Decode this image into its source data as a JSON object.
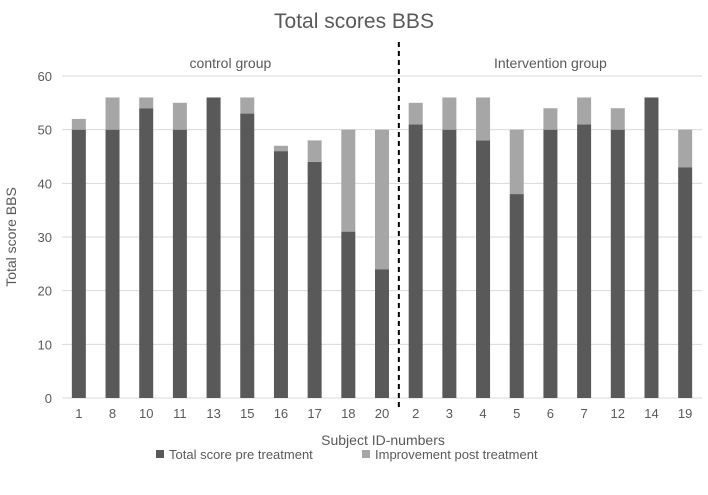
{
  "chart_data": {
    "type": "bar",
    "stacked": true,
    "title": "Total scores BBS",
    "xlabel": "Subject ID-numbers",
    "ylabel": "Total score BBS",
    "ylim": [
      0,
      60
    ],
    "yticks": [
      0,
      10,
      20,
      30,
      40,
      50,
      60
    ],
    "grid": true,
    "legend_position": "bottom",
    "groups": [
      {
        "label": "control group",
        "categories": [
          "1",
          "8",
          "10",
          "11",
          "13",
          "15",
          "16",
          "17",
          "18",
          "20"
        ]
      },
      {
        "label": "Intervention group",
        "categories": [
          "2",
          "3",
          "4",
          "5",
          "6",
          "7",
          "12",
          "14",
          "19"
        ]
      }
    ],
    "categories": [
      "1",
      "8",
      "10",
      "11",
      "13",
      "15",
      "16",
      "17",
      "18",
      "20",
      "2",
      "3",
      "4",
      "5",
      "6",
      "7",
      "12",
      "14",
      "19"
    ],
    "series": [
      {
        "name": "Total score pre treatment",
        "color": "#595959",
        "values": [
          50,
          50,
          54,
          50,
          56,
          53,
          46,
          44,
          31,
          24,
          51,
          50,
          48,
          38,
          50,
          51,
          50,
          56,
          43
        ]
      },
      {
        "name": "Improvement post treatment",
        "color": "#a6a6a6",
        "values": [
          2,
          6,
          2,
          5,
          0,
          3,
          1,
          4,
          19,
          26,
          4,
          6,
          8,
          12,
          4,
          5,
          4,
          0,
          7
        ]
      }
    ]
  }
}
